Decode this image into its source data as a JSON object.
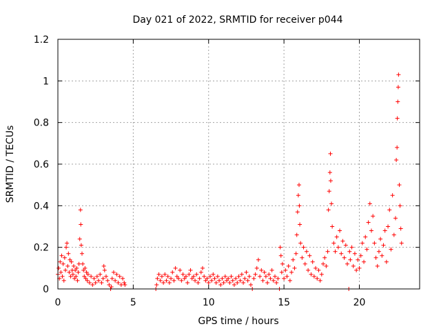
{
  "chart_data": {
    "type": "scatter",
    "title": "Day 021 of 2022, SRMTID for receiver p044",
    "xlabel": "GPS time / hours",
    "ylabel": "SRMTID / TECUs",
    "xlim": [
      0,
      24
    ],
    "ylim": [
      0,
      1.2
    ],
    "xticks": [
      0,
      5,
      10,
      15,
      20
    ],
    "xtick_labels": [
      "0",
      "5",
      "10",
      "15",
      "20"
    ],
    "yticks": [
      0,
      0.2,
      0.4,
      0.6,
      0.8,
      1.0,
      1.2
    ],
    "ytick_labels": [
      "0",
      "0.2",
      "0.4",
      "0.6",
      "0.8",
      "1",
      "1.2"
    ],
    "grid": true,
    "marker": "+",
    "series_color": "#ff0000",
    "series": [
      {
        "name": "SRMTID p044",
        "points": [
          [
            0.0,
            0.07
          ],
          [
            0.05,
            0.1
          ],
          [
            0.1,
            0.05
          ],
          [
            0.15,
            0.13
          ],
          [
            0.2,
            0.08
          ],
          [
            0.25,
            0.16
          ],
          [
            0.3,
            0.06
          ],
          [
            0.35,
            0.12
          ],
          [
            0.4,
            0.04
          ],
          [
            0.45,
            0.15
          ],
          [
            0.5,
            0.09
          ],
          [
            0.55,
            0.2
          ],
          [
            0.6,
            0.22
          ],
          [
            0.65,
            0.11
          ],
          [
            0.7,
            0.17
          ],
          [
            0.75,
            0.08
          ],
          [
            0.8,
            0.14
          ],
          [
            0.85,
            0.06
          ],
          [
            0.9,
            0.13
          ],
          [
            0.95,
            0.09
          ],
          [
            1.0,
            0.07
          ],
          [
            1.05,
            0.11
          ],
          [
            1.1,
            0.05
          ],
          [
            1.15,
            0.09
          ],
          [
            1.2,
            0.06
          ],
          [
            1.25,
            0.1
          ],
          [
            1.3,
            0.04
          ],
          [
            1.35,
            0.08
          ],
          [
            1.4,
            0.12
          ],
          [
            1.45,
            0.24
          ],
          [
            1.5,
            0.38
          ],
          [
            1.52,
            0.31
          ],
          [
            1.55,
            0.21
          ],
          [
            1.6,
            0.17
          ],
          [
            1.65,
            0.12
          ],
          [
            1.7,
            0.09
          ],
          [
            1.75,
            0.06
          ],
          [
            1.8,
            0.1
          ],
          [
            1.85,
            0.05
          ],
          [
            1.9,
            0.08
          ],
          [
            1.95,
            0.04
          ],
          [
            2.0,
            0.07
          ],
          [
            2.1,
            0.03
          ],
          [
            2.2,
            0.06
          ],
          [
            2.3,
            0.02
          ],
          [
            2.4,
            0.05
          ],
          [
            2.5,
            0.03
          ],
          [
            2.6,
            0.06
          ],
          [
            2.7,
            0.04
          ],
          [
            2.8,
            0.07
          ],
          [
            2.9,
            0.03
          ],
          [
            3.0,
            0.05
          ],
          [
            3.05,
            0.11
          ],
          [
            3.1,
            0.09
          ],
          [
            3.2,
            0.06
          ],
          [
            3.3,
            0.04
          ],
          [
            3.4,
            0.02
          ],
          [
            3.5,
            0.0
          ],
          [
            3.55,
            0.01
          ],
          [
            3.6,
            0.05
          ],
          [
            3.7,
            0.08
          ],
          [
            3.8,
            0.04
          ],
          [
            3.9,
            0.07
          ],
          [
            4.0,
            0.03
          ],
          [
            4.1,
            0.06
          ],
          [
            4.2,
            0.02
          ],
          [
            4.3,
            0.05
          ],
          [
            4.4,
            0.03
          ],
          [
            4.45,
            0.02
          ],
          [
            6.5,
            0.0
          ],
          [
            6.55,
            0.02
          ],
          [
            6.6,
            0.05
          ],
          [
            6.7,
            0.07
          ],
          [
            6.8,
            0.04
          ],
          [
            6.9,
            0.06
          ],
          [
            7.0,
            0.03
          ],
          [
            7.1,
            0.07
          ],
          [
            7.2,
            0.04
          ],
          [
            7.3,
            0.06
          ],
          [
            7.4,
            0.03
          ],
          [
            7.5,
            0.05
          ],
          [
            7.6,
            0.08
          ],
          [
            7.7,
            0.04
          ],
          [
            7.8,
            0.1
          ],
          [
            7.9,
            0.06
          ],
          [
            8.0,
            0.05
          ],
          [
            8.1,
            0.09
          ],
          [
            8.2,
            0.04
          ],
          [
            8.3,
            0.07
          ],
          [
            8.4,
            0.05
          ],
          [
            8.5,
            0.06
          ],
          [
            8.6,
            0.03
          ],
          [
            8.7,
            0.07
          ],
          [
            8.8,
            0.09
          ],
          [
            8.9,
            0.05
          ],
          [
            9.0,
            0.06
          ],
          [
            9.1,
            0.04
          ],
          [
            9.2,
            0.07
          ],
          [
            9.3,
            0.03
          ],
          [
            9.4,
            0.05
          ],
          [
            9.5,
            0.08
          ],
          [
            9.6,
            0.1
          ],
          [
            9.7,
            0.06
          ],
          [
            9.8,
            0.04
          ],
          [
            9.9,
            0.05
          ],
          [
            10.0,
            0.03
          ],
          [
            10.1,
            0.06
          ],
          [
            10.2,
            0.04
          ],
          [
            10.3,
            0.07
          ],
          [
            10.4,
            0.05
          ],
          [
            10.5,
            0.03
          ],
          [
            10.6,
            0.06
          ],
          [
            10.7,
            0.04
          ],
          [
            10.8,
            0.02
          ],
          [
            10.9,
            0.05
          ],
          [
            11.0,
            0.03
          ],
          [
            11.1,
            0.06
          ],
          [
            11.2,
            0.04
          ],
          [
            11.3,
            0.05
          ],
          [
            11.4,
            0.03
          ],
          [
            11.5,
            0.06
          ],
          [
            11.6,
            0.04
          ],
          [
            11.7,
            0.02
          ],
          [
            11.8,
            0.05
          ],
          [
            11.9,
            0.03
          ],
          [
            12.0,
            0.06
          ],
          [
            12.1,
            0.04
          ],
          [
            12.2,
            0.07
          ],
          [
            12.3,
            0.03
          ],
          [
            12.4,
            0.05
          ],
          [
            12.5,
            0.08
          ],
          [
            12.6,
            0.04
          ],
          [
            12.7,
            0.06
          ],
          [
            12.8,
            0.02
          ],
          [
            12.9,
            0.0
          ],
          [
            13.0,
            0.05
          ],
          [
            13.1,
            0.07
          ],
          [
            13.2,
            0.1
          ],
          [
            13.3,
            0.14
          ],
          [
            13.4,
            0.06
          ],
          [
            13.5,
            0.09
          ],
          [
            13.6,
            0.04
          ],
          [
            13.7,
            0.08
          ],
          [
            13.8,
            0.06
          ],
          [
            13.9,
            0.03
          ],
          [
            14.0,
            0.07
          ],
          [
            14.1,
            0.05
          ],
          [
            14.2,
            0.09
          ],
          [
            14.3,
            0.04
          ],
          [
            14.4,
            0.06
          ],
          [
            14.5,
            0.03
          ],
          [
            14.6,
            0.05
          ],
          [
            14.7,
            0.0
          ],
          [
            14.75,
            0.2
          ],
          [
            14.8,
            0.16
          ],
          [
            14.85,
            0.08
          ],
          [
            14.9,
            0.12
          ],
          [
            15.0,
            0.05
          ],
          [
            15.1,
            0.09
          ],
          [
            15.2,
            0.06
          ],
          [
            15.3,
            0.11
          ],
          [
            15.4,
            0.04
          ],
          [
            15.5,
            0.08
          ],
          [
            15.6,
            0.14
          ],
          [
            15.7,
            0.1
          ],
          [
            15.8,
            0.17
          ],
          [
            15.85,
            0.26
          ],
          [
            15.9,
            0.37
          ],
          [
            15.95,
            0.45
          ],
          [
            16.0,
            0.5
          ],
          [
            16.02,
            0.4
          ],
          [
            16.05,
            0.31
          ],
          [
            16.1,
            0.22
          ],
          [
            16.2,
            0.15
          ],
          [
            16.3,
            0.2
          ],
          [
            16.4,
            0.12
          ],
          [
            16.5,
            0.18
          ],
          [
            16.6,
            0.09
          ],
          [
            16.7,
            0.16
          ],
          [
            16.8,
            0.07
          ],
          [
            16.9,
            0.13
          ],
          [
            17.0,
            0.06
          ],
          [
            17.1,
            0.1
          ],
          [
            17.2,
            0.05
          ],
          [
            17.3,
            0.09
          ],
          [
            17.4,
            0.04
          ],
          [
            17.5,
            0.07
          ],
          [
            17.6,
            0.12
          ],
          [
            17.7,
            0.15
          ],
          [
            17.8,
            0.11
          ],
          [
            17.9,
            0.18
          ],
          [
            17.95,
            0.38
          ],
          [
            18.0,
            0.47
          ],
          [
            18.05,
            0.56
          ],
          [
            18.08,
            0.65
          ],
          [
            18.1,
            0.52
          ],
          [
            18.15,
            0.41
          ],
          [
            18.2,
            0.3
          ],
          [
            18.3,
            0.22
          ],
          [
            18.4,
            0.18
          ],
          [
            18.5,
            0.25
          ],
          [
            18.6,
            0.2
          ],
          [
            18.7,
            0.28
          ],
          [
            18.8,
            0.17
          ],
          [
            18.9,
            0.23
          ],
          [
            19.0,
            0.15
          ],
          [
            19.1,
            0.21
          ],
          [
            19.2,
            0.12
          ],
          [
            19.3,
            0.0
          ],
          [
            19.35,
            0.18
          ],
          [
            19.4,
            0.14
          ],
          [
            19.5,
            0.2
          ],
          [
            19.6,
            0.11
          ],
          [
            19.7,
            0.17
          ],
          [
            19.8,
            0.09
          ],
          [
            19.9,
            0.14
          ],
          [
            20.0,
            0.1
          ],
          [
            20.1,
            0.16
          ],
          [
            20.2,
            0.22
          ],
          [
            20.3,
            0.13
          ],
          [
            20.4,
            0.25
          ],
          [
            20.5,
            0.19
          ],
          [
            20.6,
            0.32
          ],
          [
            20.7,
            0.41
          ],
          [
            20.8,
            0.28
          ],
          [
            20.9,
            0.35
          ],
          [
            21.0,
            0.22
          ],
          [
            21.1,
            0.15
          ],
          [
            21.2,
            0.11
          ],
          [
            21.3,
            0.18
          ],
          [
            21.4,
            0.24
          ],
          [
            21.5,
            0.16
          ],
          [
            21.6,
            0.21
          ],
          [
            21.7,
            0.28
          ],
          [
            21.8,
            0.13
          ],
          [
            21.9,
            0.3
          ],
          [
            22.0,
            0.38
          ],
          [
            22.1,
            0.19
          ],
          [
            22.2,
            0.45
          ],
          [
            22.3,
            0.26
          ],
          [
            22.4,
            0.34
          ],
          [
            22.45,
            0.62
          ],
          [
            22.5,
            0.68
          ],
          [
            22.52,
            0.82
          ],
          [
            22.55,
            0.9
          ],
          [
            22.58,
            0.97
          ],
          [
            22.6,
            1.03
          ],
          [
            22.65,
            0.5
          ],
          [
            22.7,
            0.4
          ],
          [
            22.75,
            0.29
          ],
          [
            22.8,
            0.22
          ]
        ]
      }
    ]
  }
}
